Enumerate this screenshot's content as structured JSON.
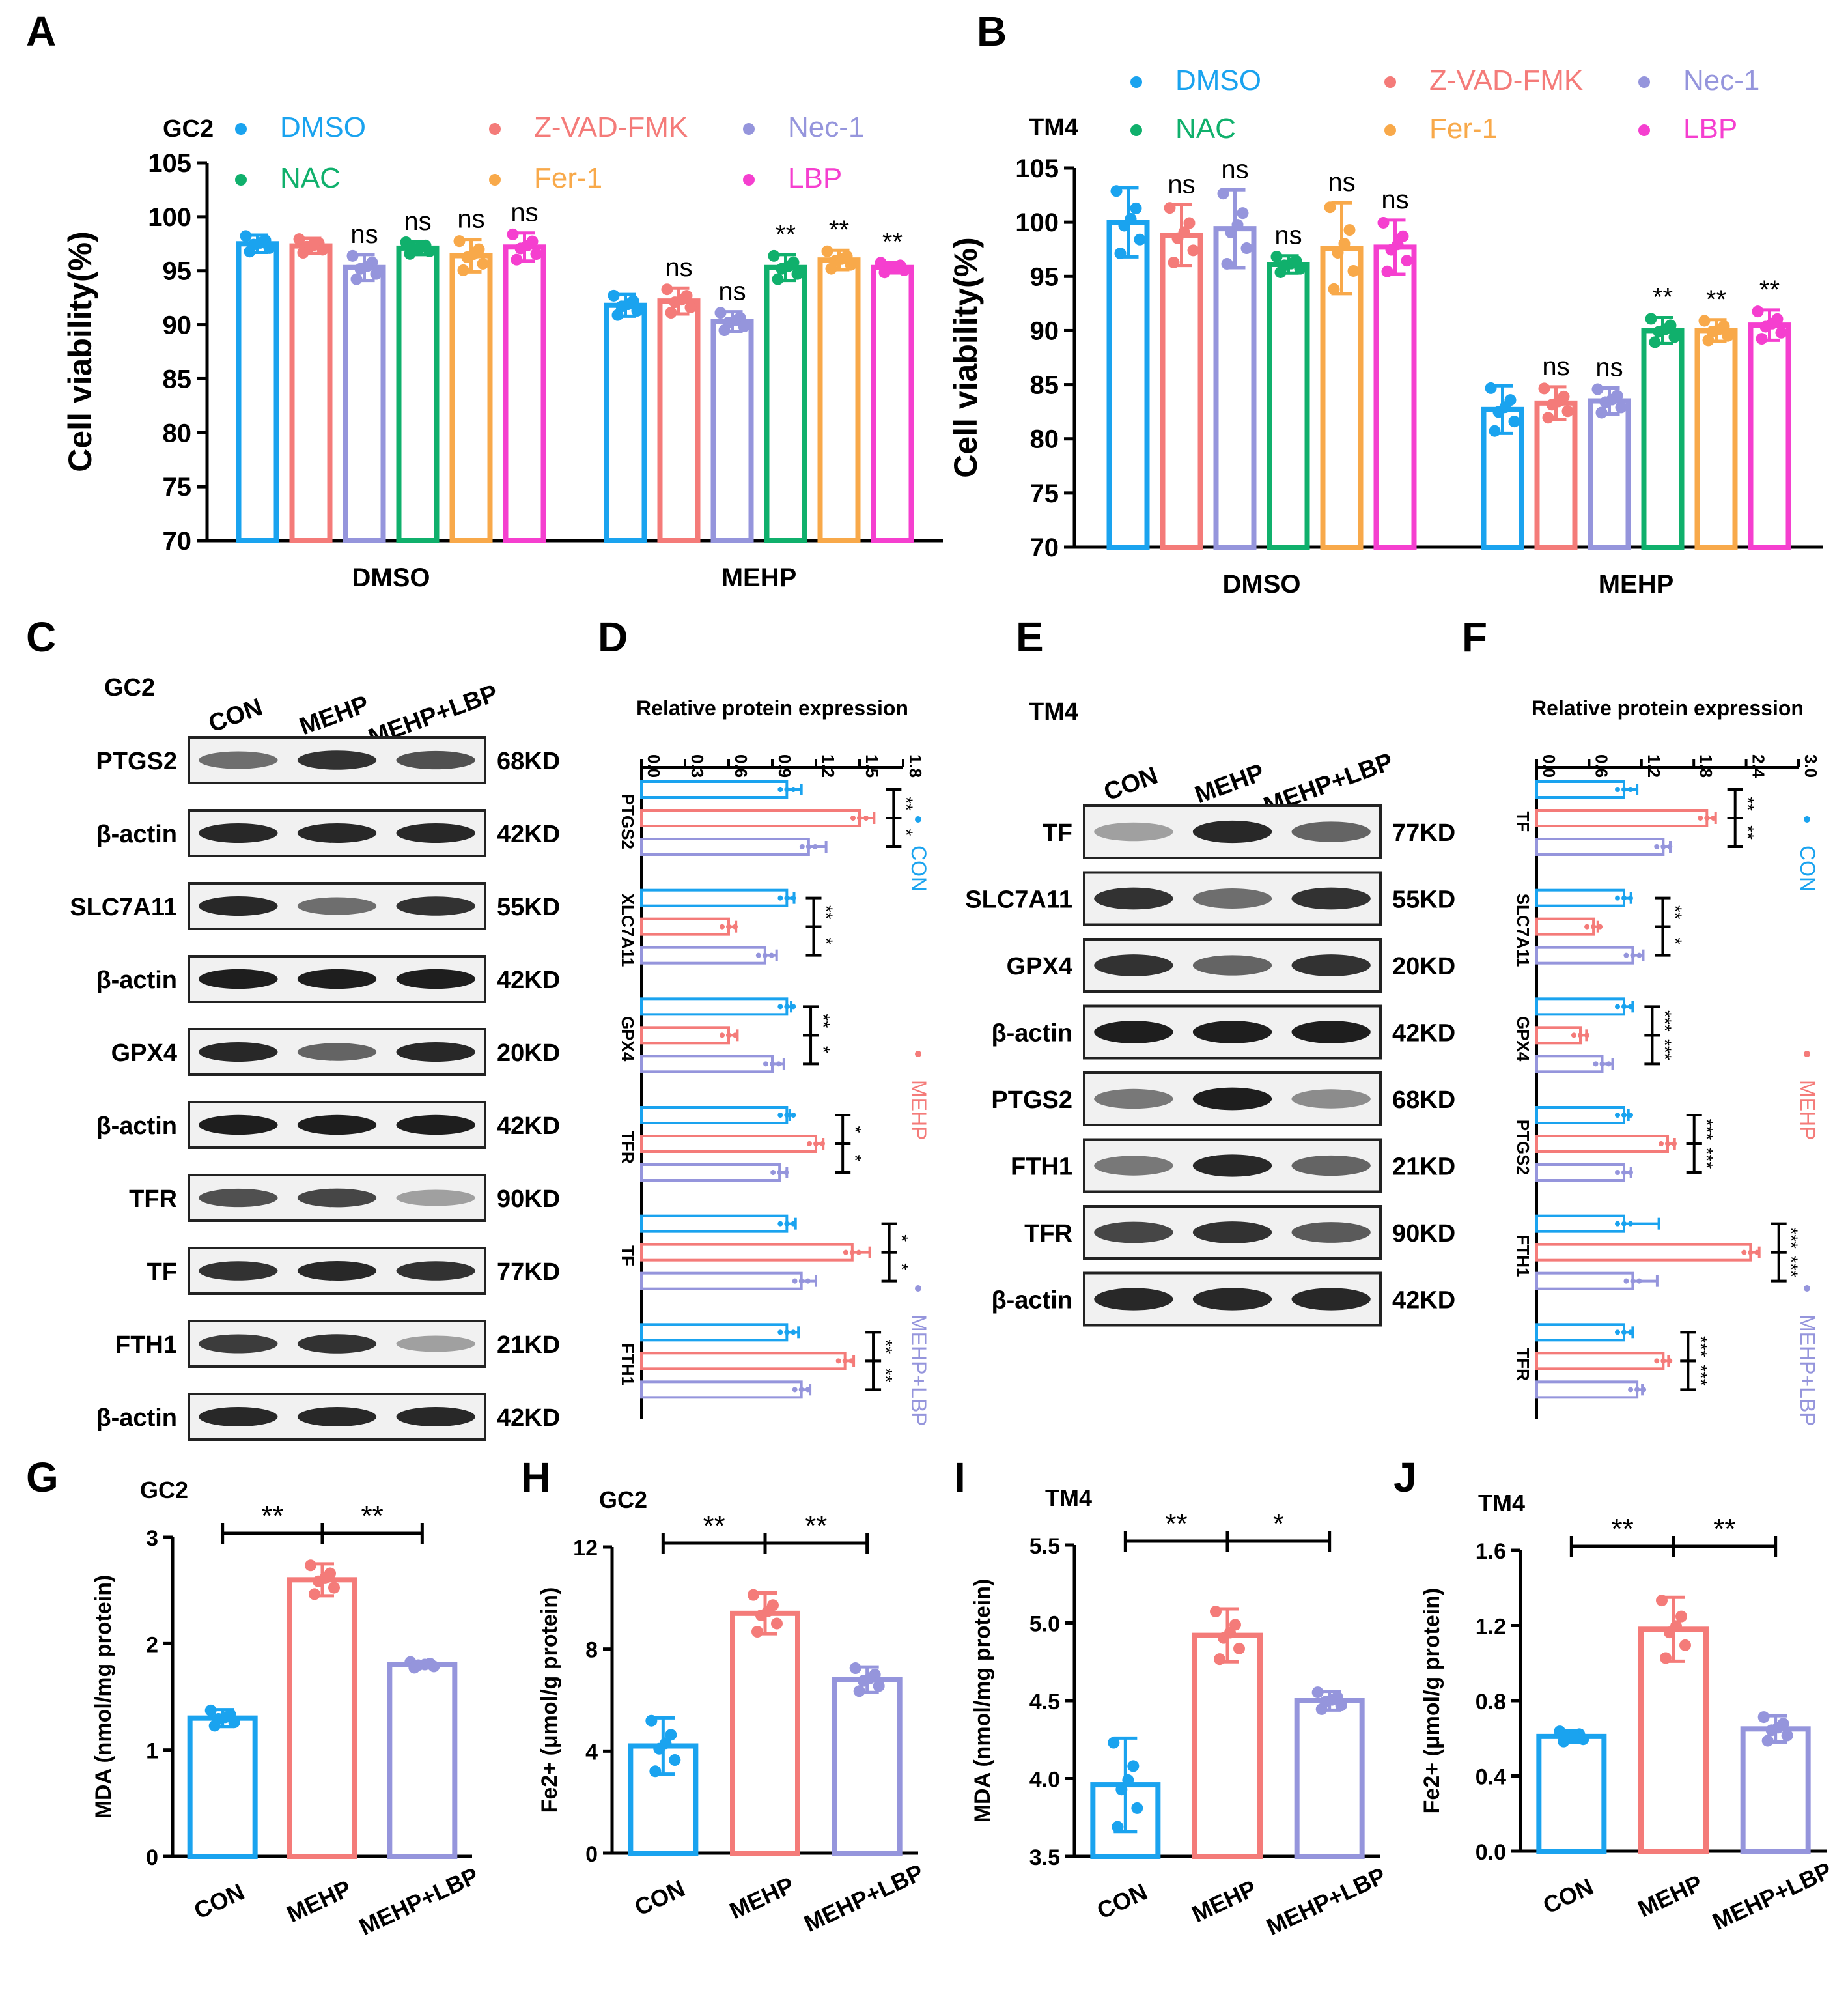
{
  "panel_letters": [
    "A",
    "B",
    "C",
    "D",
    "E",
    "F",
    "G",
    "H",
    "I",
    "J"
  ],
  "colors": {
    "CON": "#1aa3ef",
    "MEHP": "#f47b79",
    "MEHP+LBP": "#9595dc",
    "DMSO": "#1aa3ef",
    "Z-VAD-FMK": "#f47b79",
    "Nec-1": "#9595dc",
    "NAC": "#10b06c",
    "Fer-1": "#f8a94a",
    "LBP": "#f53fcf"
  },
  "chart_data": [
    {
      "panel": "A",
      "type": "bar",
      "cell_line": "GC2",
      "ylabel": "Cell viability(%)",
      "ylim": [
        70,
        105
      ],
      "yticks": [
        "70",
        "75",
        "80",
        "85",
        "90",
        "95",
        "100",
        "105"
      ],
      "groups": [
        "DMSO",
        "MEHP"
      ],
      "legend": [
        "DMSO",
        "Z-VAD-FMK",
        "Nec-1",
        "NAC",
        "Fer-1",
        "LBP"
      ],
      "series": [
        {
          "name": "DMSO",
          "values": [
            97.5,
            91.8
          ],
          "err": [
            0.8,
            1.0
          ],
          "sig": [
            "",
            ""
          ]
        },
        {
          "name": "Z-VAD-FMK",
          "values": [
            97.3,
            92.2
          ],
          "err": [
            0.7,
            1.2
          ],
          "sig": [
            "",
            "ns"
          ]
        },
        {
          "name": "Nec-1",
          "values": [
            95.3,
            90.3
          ],
          "err": [
            1.2,
            0.9
          ],
          "sig": [
            "ns",
            "ns"
          ]
        },
        {
          "name": "NAC",
          "values": [
            97.1,
            95.3
          ],
          "err": [
            0.6,
            1.2
          ],
          "sig": [
            "ns",
            "**"
          ]
        },
        {
          "name": "Fer-1",
          "values": [
            96.4,
            96.0
          ],
          "err": [
            1.5,
            0.9
          ],
          "sig": [
            "ns",
            "**"
          ]
        },
        {
          "name": "LBP",
          "values": [
            97.2,
            95.3
          ],
          "err": [
            1.3,
            0.5
          ],
          "sig": [
            "ns",
            "**"
          ]
        }
      ]
    },
    {
      "panel": "B",
      "type": "bar",
      "cell_line": "TM4",
      "ylabel": "Cell viability(%)",
      "ylim": [
        70,
        105
      ],
      "yticks": [
        "70",
        "75",
        "80",
        "85",
        "90",
        "95",
        "100",
        "105"
      ],
      "groups": [
        "DMSO",
        "MEHP"
      ],
      "legend": [
        "DMSO",
        "Z-VAD-FMK",
        "Nec-1",
        "NAC",
        "Fer-1",
        "LBP"
      ],
      "series": [
        {
          "name": "DMSO",
          "values": [
            100.0,
            82.7
          ],
          "err": [
            3.2,
            2.2
          ],
          "sig": [
            "",
            ""
          ]
        },
        {
          "name": "Z-VAD-FMK",
          "values": [
            98.8,
            83.3
          ],
          "err": [
            2.8,
            1.5
          ],
          "sig": [
            "ns",
            "ns"
          ]
        },
        {
          "name": "Nec-1",
          "values": [
            99.4,
            83.5
          ],
          "err": [
            3.6,
            1.2
          ],
          "sig": [
            "ns",
            "ns"
          ]
        },
        {
          "name": "NAC",
          "values": [
            96.1,
            90.0
          ],
          "err": [
            0.8,
            1.2
          ],
          "sig": [
            "ns",
            "**"
          ]
        },
        {
          "name": "Fer-1",
          "values": [
            97.6,
            90.0
          ],
          "err": [
            4.2,
            1.0
          ],
          "sig": [
            "ns",
            "**"
          ]
        },
        {
          "name": "LBP",
          "values": [
            97.7,
            90.5
          ],
          "err": [
            2.5,
            1.4
          ],
          "sig": [
            "ns",
            "**"
          ]
        }
      ]
    },
    {
      "panel": "D",
      "type": "bar",
      "orientation": "horizontal",
      "cell_line": "GC2",
      "xlabel": "Relative protein expression",
      "xlim": [
        0,
        1.8
      ],
      "xticks": [
        "0.0",
        "0.3",
        "0.6",
        "0.9",
        "1.2",
        "1.5",
        "1.8"
      ],
      "legend": [
        "CON",
        "MEHP",
        "MEHP+LBP"
      ],
      "categories": [
        "PTGS2",
        "XLC7A11",
        "GPX4",
        "TFR",
        "TF",
        "FTH1"
      ],
      "series": [
        {
          "name": "CON",
          "values": [
            1.0,
            1.0,
            1.0,
            1.0,
            1.0,
            1.0
          ],
          "err": [
            0.1,
            0.05,
            0.03,
            0.02,
            0.06,
            0.08
          ]
        },
        {
          "name": "MEHP",
          "values": [
            1.5,
            0.6,
            0.6,
            1.2,
            1.45,
            1.4
          ],
          "err": [
            0.1,
            0.05,
            0.06,
            0.05,
            0.12,
            0.06
          ]
        },
        {
          "name": "MEHP+LBP",
          "values": [
            1.15,
            0.85,
            0.9,
            0.95,
            1.1,
            1.1
          ],
          "err": [
            0.12,
            0.08,
            0.08,
            0.05,
            0.1,
            0.06
          ]
        }
      ],
      "sig_pairs": [
        [
          "**",
          "*"
        ],
        [
          "**",
          "*"
        ],
        [
          "**",
          "*"
        ],
        [
          "*",
          "*"
        ],
        [
          "*",
          "*"
        ],
        [
          "**",
          "**"
        ]
      ]
    },
    {
      "panel": "F",
      "type": "bar",
      "orientation": "horizontal",
      "cell_line": "TM4",
      "xlabel": "Relative protein expression",
      "xlim": [
        0,
        3.0
      ],
      "xticks": [
        "0.0",
        "0.6",
        "1.2",
        "1.8",
        "2.4",
        "3.0"
      ],
      "legend": [
        "CON",
        "MEHP",
        "MEHP+LBP"
      ],
      "categories": [
        "TF",
        "SLC7A11",
        "GPX4",
        "PTGS2",
        "FTH1",
        "TFR"
      ],
      "series": [
        {
          "name": "CON",
          "values": [
            1.0,
            1.0,
            1.0,
            1.0,
            1.0,
            1.0
          ],
          "err": [
            0.15,
            0.08,
            0.1,
            0.05,
            0.4,
            0.1
          ]
        },
        {
          "name": "MEHP",
          "values": [
            1.95,
            0.65,
            0.5,
            1.5,
            2.45,
            1.45
          ],
          "err": [
            0.1,
            0.05,
            0.07,
            0.08,
            0.1,
            0.06
          ]
        },
        {
          "name": "MEHP+LBP",
          "values": [
            1.45,
            1.1,
            0.75,
            1.0,
            1.1,
            1.15
          ],
          "err": [
            0.08,
            0.12,
            0.12,
            0.08,
            0.28,
            0.06
          ]
        }
      ],
      "sig_pairs": [
        [
          "**",
          "**"
        ],
        [
          "**",
          "*"
        ],
        [
          "***",
          "***"
        ],
        [
          "***",
          "***"
        ],
        [
          "***",
          "***"
        ],
        [
          "***",
          "***"
        ]
      ]
    },
    {
      "panel": "G",
      "type": "bar",
      "cell_line": "GC2",
      "ylabel": "MDA (nmol/mg protein)",
      "ylim": [
        0,
        3
      ],
      "yticks": [
        "0",
        "1",
        "2",
        "3"
      ],
      "categories": [
        "CON",
        "MEHP",
        "MEHP+LBP"
      ],
      "values": [
        1.3,
        2.6,
        1.8
      ],
      "err": [
        0.08,
        0.15,
        0.03
      ],
      "sig": [
        "**",
        "**"
      ]
    },
    {
      "panel": "H",
      "type": "bar",
      "cell_line": "GC2",
      "ylabel": "Fe2+ (μmol/g protein)",
      "ylim": [
        0,
        12
      ],
      "yticks": [
        "0",
        "4",
        "8",
        "12"
      ],
      "categories": [
        "CON",
        "MEHP",
        "MEHP+LBP"
      ],
      "values": [
        4.2,
        9.4,
        6.8
      ],
      "err": [
        1.1,
        0.8,
        0.5
      ],
      "sig": [
        "**",
        "**"
      ]
    },
    {
      "panel": "I",
      "type": "bar",
      "cell_line": "TM4",
      "ylabel": "MDA (nmol/mg protein)",
      "ylim": [
        3.5,
        5.5
      ],
      "yticks": [
        "3.5",
        "4.0",
        "4.5",
        "5.0",
        "5.5"
      ],
      "categories": [
        "CON",
        "MEHP",
        "MEHP+LBP"
      ],
      "values": [
        3.96,
        4.92,
        4.5
      ],
      "err": [
        0.3,
        0.17,
        0.06
      ],
      "sig": [
        "**",
        "*"
      ]
    },
    {
      "panel": "J",
      "type": "bar",
      "cell_line": "TM4",
      "ylabel": "Fe2+ (μmol/g protein)",
      "ylim": [
        0,
        1.6
      ],
      "yticks": [
        "0.0",
        "0.4",
        "0.8",
        "1.2",
        "1.6"
      ],
      "categories": [
        "CON",
        "MEHP",
        "MEHP+LBP"
      ],
      "values": [
        0.61,
        1.18,
        0.65
      ],
      "err": [
        0.03,
        0.17,
        0.07
      ],
      "sig": [
        "**",
        "**"
      ]
    }
  ],
  "western_blots": {
    "C": {
      "cell_line": "GC2",
      "lanes": [
        "CON",
        "MEHP",
        "MEHP+LBP"
      ],
      "bands": [
        {
          "protein": "PTGS2",
          "kd": "68KD",
          "intensity": [
            0.55,
            0.85,
            0.7
          ]
        },
        {
          "protein": "β-actin",
          "kd": "42KD",
          "intensity": [
            0.9,
            0.9,
            0.9
          ]
        },
        {
          "protein": "SLC7A11",
          "kd": "55KD",
          "intensity": [
            0.9,
            0.55,
            0.85
          ]
        },
        {
          "protein": "β-actin",
          "kd": "42KD",
          "intensity": [
            0.95,
            0.95,
            0.95
          ]
        },
        {
          "protein": "GPX4",
          "kd": "20KD",
          "intensity": [
            0.9,
            0.6,
            0.9
          ]
        },
        {
          "protein": "β-actin",
          "kd": "42KD",
          "intensity": [
            0.95,
            0.95,
            0.95
          ]
        },
        {
          "protein": "TFR",
          "kd": "90KD",
          "intensity": [
            0.7,
            0.75,
            0.3
          ]
        },
        {
          "protein": "TF",
          "kd": "77KD",
          "intensity": [
            0.85,
            0.9,
            0.85
          ]
        },
        {
          "protein": "FTH1",
          "kd": "21KD",
          "intensity": [
            0.8,
            0.85,
            0.3
          ]
        },
        {
          "protein": "β-actin",
          "kd": "42KD",
          "intensity": [
            0.9,
            0.9,
            0.9
          ]
        }
      ]
    },
    "E": {
      "cell_line": "TM4",
      "lanes": [
        "CON",
        "MEHP",
        "MEHP+LBP"
      ],
      "bands": [
        {
          "protein": "TF",
          "kd": "77KD",
          "intensity": [
            0.3,
            0.9,
            0.6
          ]
        },
        {
          "protein": "SLC7A11",
          "kd": "55KD",
          "intensity": [
            0.85,
            0.55,
            0.85
          ]
        },
        {
          "protein": "GPX4",
          "kd": "20KD",
          "intensity": [
            0.85,
            0.6,
            0.85
          ]
        },
        {
          "protein": "β-actin",
          "kd": "42KD",
          "intensity": [
            0.95,
            0.95,
            0.95
          ]
        },
        {
          "protein": "PTGS2",
          "kd": "68KD",
          "intensity": [
            0.5,
            0.95,
            0.4
          ]
        },
        {
          "protein": "FTH1",
          "kd": "21KD",
          "intensity": [
            0.5,
            0.9,
            0.6
          ]
        },
        {
          "protein": "TFR",
          "kd": "90KD",
          "intensity": [
            0.75,
            0.85,
            0.65
          ]
        },
        {
          "protein": "β-actin",
          "kd": "42KD",
          "intensity": [
            0.9,
            0.9,
            0.9
          ]
        }
      ]
    }
  }
}
